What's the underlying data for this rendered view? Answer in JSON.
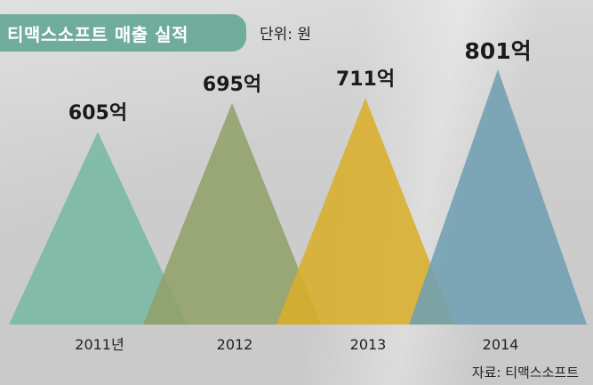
{
  "title": "티맥스소프트 매출 실적",
  "unit_label": "단위: 원",
  "source": "자료: 티맥스소프트",
  "chart_data": {
    "type": "area",
    "title": "티맥스소프트 매출 실적",
    "categories": [
      "2011년",
      "2012",
      "2013",
      "2014"
    ],
    "values": [
      605,
      695,
      711,
      801
    ],
    "value_labels": [
      "605억",
      "695억",
      "711억",
      "801억"
    ],
    "colors": [
      "#78b9a4",
      "#92a06a",
      "#d8ae2a",
      "#6f9fb2"
    ],
    "grid": false,
    "legend": "none"
  }
}
